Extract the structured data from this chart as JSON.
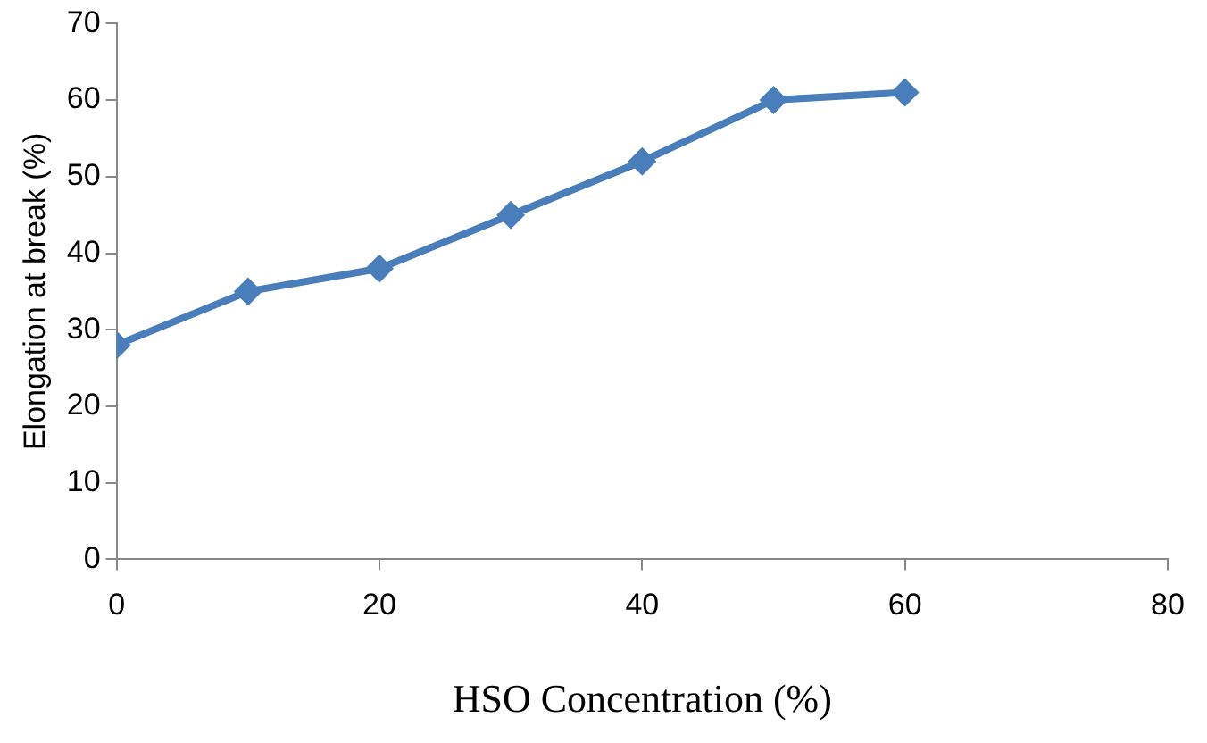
{
  "chart_data": {
    "type": "line",
    "xlabel": "HSO Concentration (%)",
    "ylabel": "Elongation at break (%)",
    "x": [
      0,
      10,
      20,
      30,
      40,
      50,
      60
    ],
    "series": [
      {
        "color": "#4a7ebb",
        "values": [
          28,
          35,
          38,
          45,
          52,
          60,
          61
        ]
      }
    ],
    "xlim": [
      0,
      80
    ],
    "xticks": [
      0,
      20,
      40,
      60,
      80
    ],
    "ylim": [
      0,
      70
    ],
    "yticks": [
      0,
      10,
      20,
      30,
      40,
      50,
      60,
      70
    ],
    "grid": false,
    "legend": false,
    "marker": "diamond",
    "line_style": "solid"
  }
}
